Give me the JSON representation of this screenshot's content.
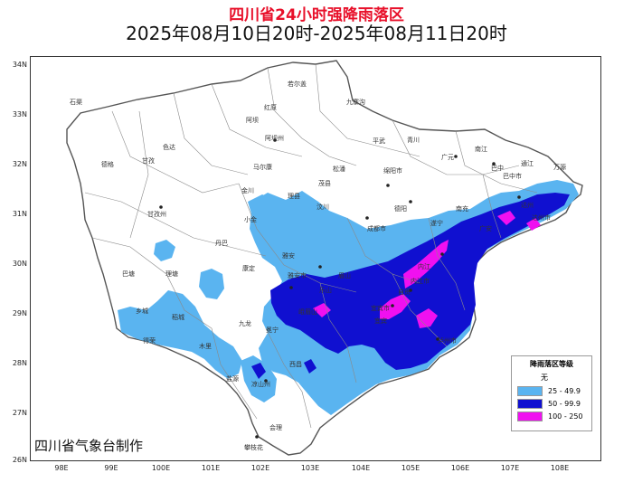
{
  "header": {
    "title": "四川省24小时强降雨落区",
    "subtitle": "2025年08月10日20时-2025年08月11日20时"
  },
  "axes": {
    "lat_labels": [
      "34N",
      "33N",
      "32N",
      "31N",
      "30N",
      "29N",
      "28N",
      "27N",
      "26N"
    ],
    "lon_labels": [
      "98E",
      "99E",
      "100E",
      "101E",
      "102E",
      "103E",
      "104E",
      "105E",
      "106E",
      "107E",
      "108E"
    ]
  },
  "legend": {
    "title": "降雨落区等级",
    "items": [
      {
        "label": "无",
        "color": "#ffffff"
      },
      {
        "label": "25 - 49.9",
        "color": "#5ab4f0"
      },
      {
        "label": "50 - 99.9",
        "color": "#1010d0"
      },
      {
        "label": "100 - 250",
        "color": "#f010f0"
      }
    ]
  },
  "credit": "四川省气象台制作",
  "places": [
    "石渠",
    "德格",
    "甘孜",
    "色达",
    "阿坝",
    "红原",
    "若尔盖",
    "九寨沟",
    "平武",
    "青川",
    "广元",
    "巴中",
    "万源",
    "达州",
    "通江",
    "南江",
    "马尔康",
    "松潘",
    "茂县",
    "理县",
    "汶川",
    "金川",
    "小金",
    "丹巴",
    "康定",
    "甘孜州",
    "阿坝州",
    "巴塘",
    "理塘",
    "稻城",
    "乡城",
    "得荣",
    "九龙",
    "木里",
    "盐源",
    "冕宁",
    "西昌",
    "凉山州",
    "会理",
    "攀枝花",
    "雅安",
    "成都市",
    "绵阳市",
    "德阳",
    "遂宁",
    "南充",
    "广安",
    "内江",
    "自贡",
    "宜宾",
    "泸州市",
    "眉山",
    "乐山",
    "雅安市",
    "峨眉山",
    "内江市",
    "达州市",
    "巴中市",
    "宜宾市"
  ]
}
